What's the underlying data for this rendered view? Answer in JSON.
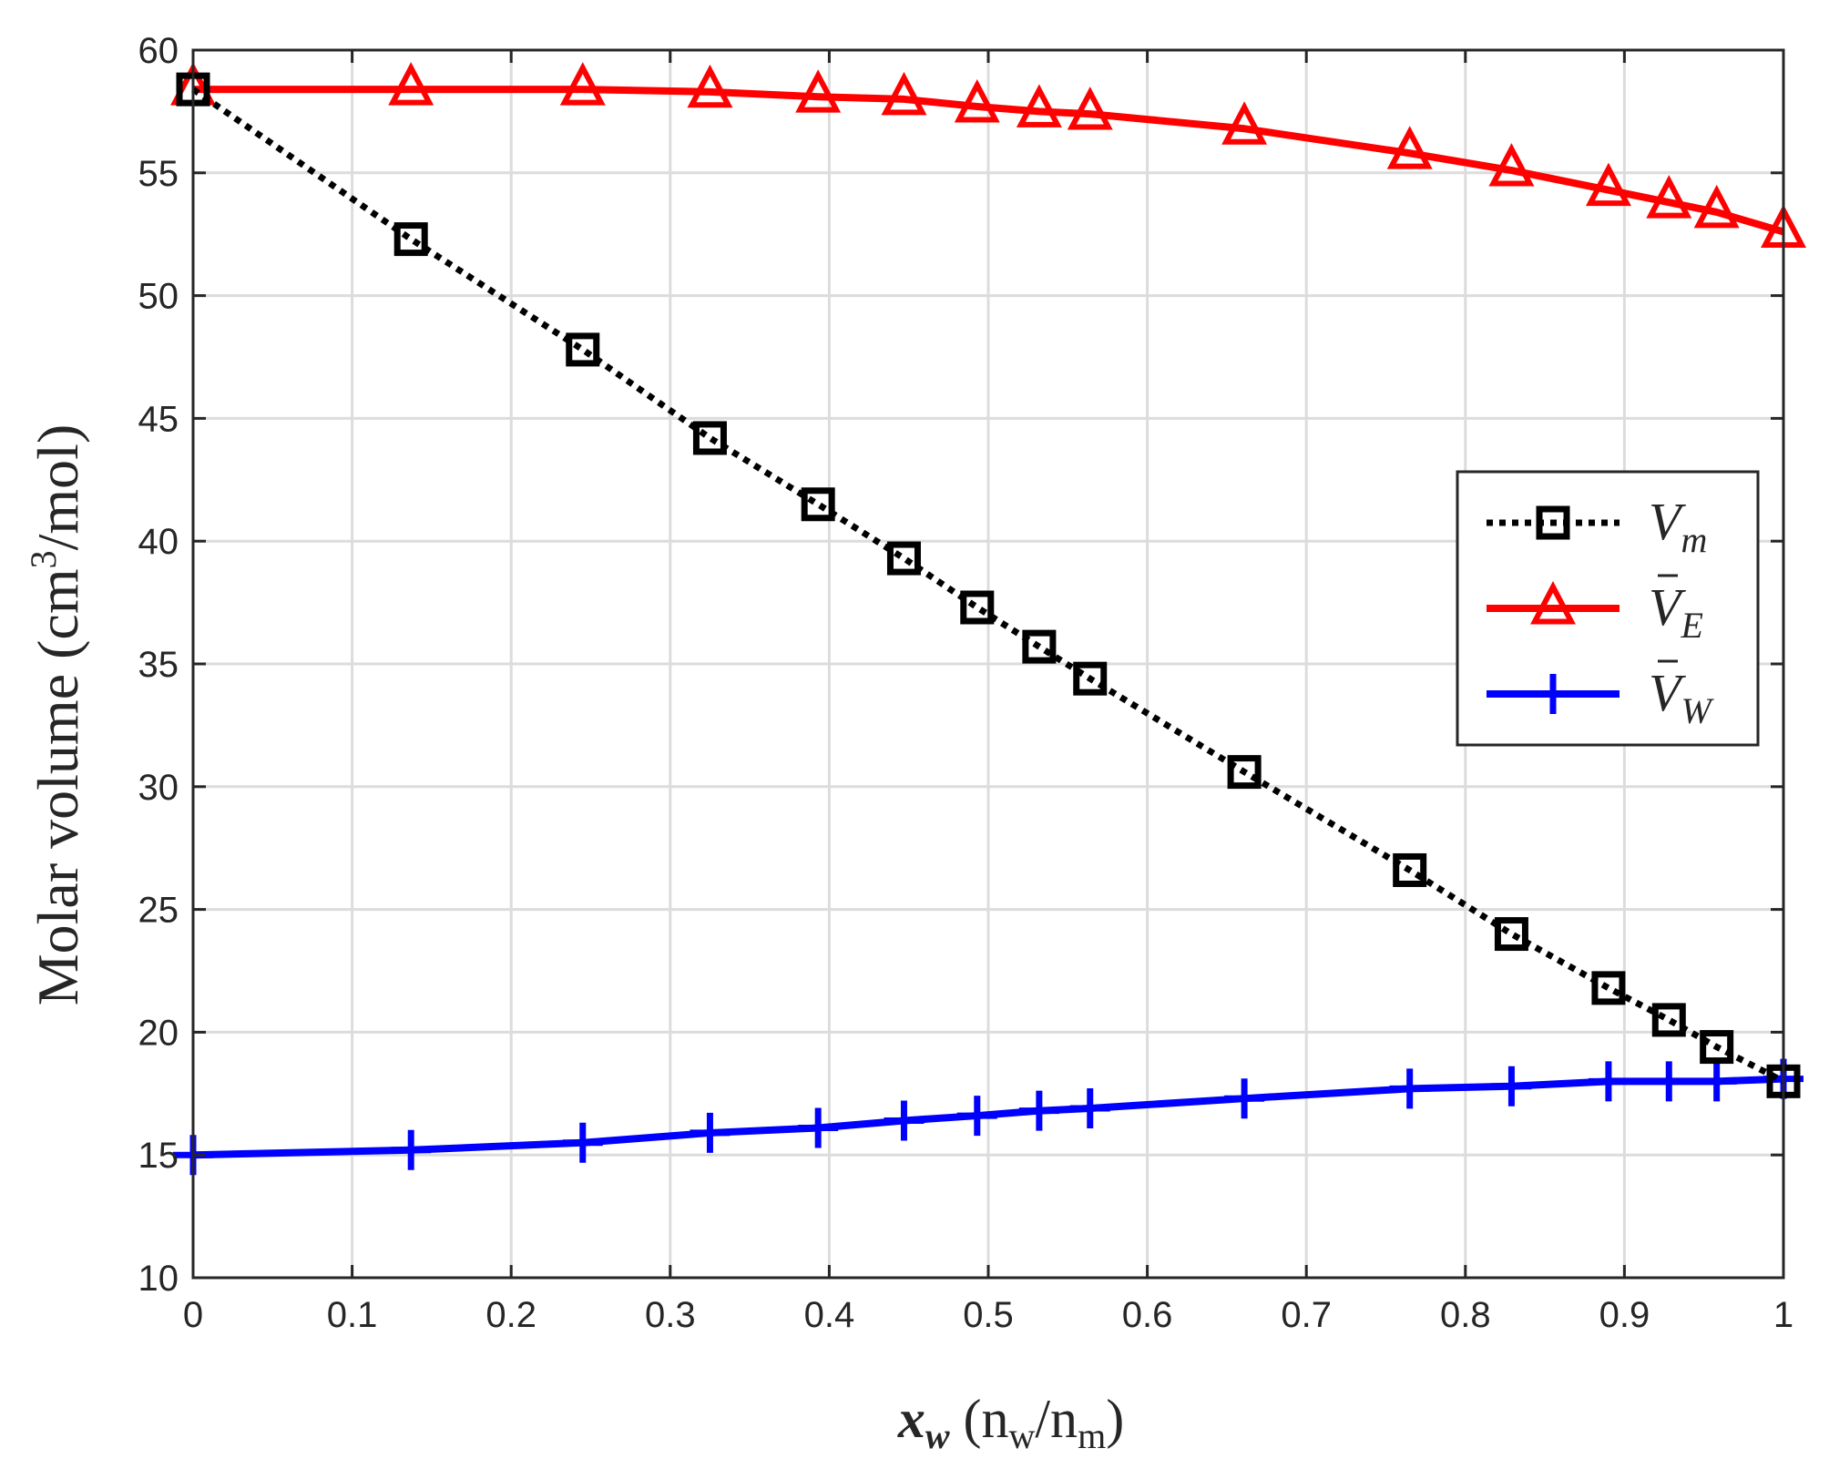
{
  "chart_data": {
    "type": "line",
    "title": "",
    "xlabel": "x_w (n_w/n_m)",
    "xlabel_parts": {
      "var": "x",
      "var_sub": "w",
      "open": " (n",
      "sub1": "w",
      "slash": "/n",
      "sub2": "m",
      "close": ")"
    },
    "ylabel": "Molar volume (cm3/mol)",
    "ylabel_parts": {
      "main": "Molar volume (cm",
      "sup": "3",
      "tail": "/mol)"
    },
    "xlim": [
      0,
      1
    ],
    "ylim": [
      10,
      60
    ],
    "xticks": [
      0,
      0.1,
      0.2,
      0.3,
      0.4,
      0.5,
      0.6,
      0.7,
      0.8,
      0.9,
      1
    ],
    "xtick_labels": [
      "0",
      "0.1",
      "0.2",
      "0.3",
      "0.4",
      "0.5",
      "0.6",
      "0.7",
      "0.8",
      "0.9",
      "1"
    ],
    "yticks": [
      10,
      15,
      20,
      25,
      30,
      35,
      40,
      45,
      50,
      55,
      60
    ],
    "ytick_labels": [
      "10",
      "15",
      "20",
      "25",
      "30",
      "35",
      "40",
      "45",
      "50",
      "55",
      "60"
    ],
    "grid": true,
    "legend_position": "right-middle",
    "x": [
      0,
      0.137,
      0.245,
      0.325,
      0.393,
      0.447,
      0.493,
      0.532,
      0.564,
      0.661,
      0.765,
      0.829,
      0.89,
      0.928,
      0.958,
      1.0
    ],
    "series": [
      {
        "name": "V_m",
        "legend": {
          "base": "V",
          "sub": "m",
          "bar": false
        },
        "color": "#000000",
        "style": "dotted",
        "marker": "square",
        "values": [
          58.4,
          52.3,
          47.8,
          44.2,
          41.5,
          39.3,
          37.3,
          35.7,
          34.4,
          30.6,
          26.6,
          24.0,
          21.8,
          20.5,
          19.4,
          18.0
        ]
      },
      {
        "name": "V̄_E",
        "legend": {
          "base": "V",
          "sub": "E",
          "bar": true
        },
        "color": "#ff0000",
        "style": "solid",
        "marker": "triangle",
        "values": [
          58.4,
          58.4,
          58.4,
          58.3,
          58.1,
          58.0,
          57.7,
          57.5,
          57.4,
          56.8,
          55.8,
          55.1,
          54.3,
          53.8,
          53.4,
          52.6
        ]
      },
      {
        "name": "V̄_W",
        "legend": {
          "base": "V",
          "sub": "W",
          "bar": true
        },
        "color": "#0000ff",
        "style": "solid",
        "marker": "plus",
        "values": [
          15.0,
          15.2,
          15.5,
          15.9,
          16.1,
          16.4,
          16.6,
          16.8,
          16.9,
          17.3,
          17.7,
          17.8,
          18.0,
          18.0,
          18.0,
          18.1
        ]
      }
    ]
  }
}
